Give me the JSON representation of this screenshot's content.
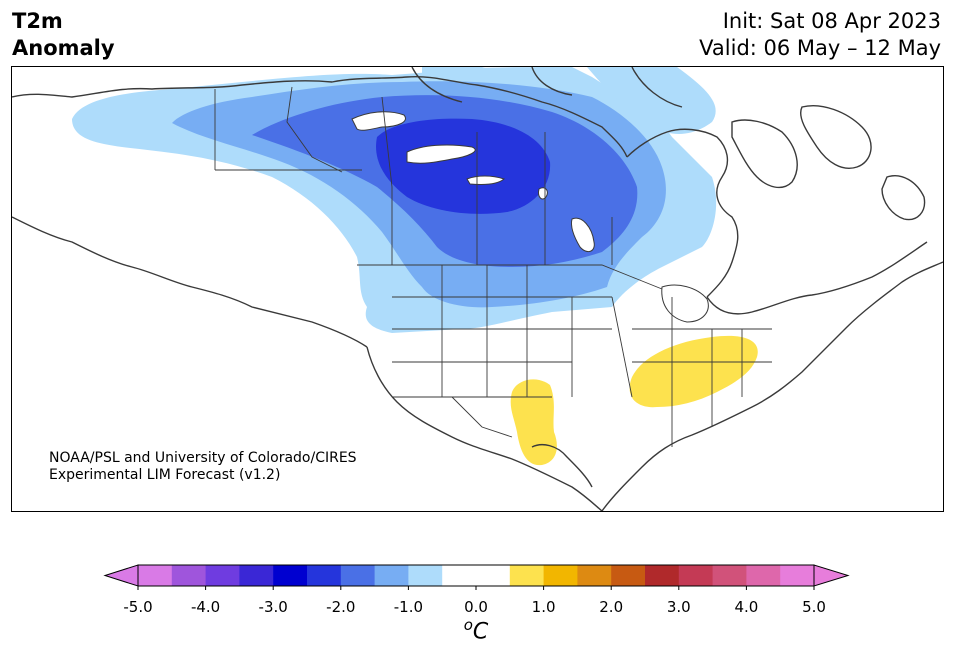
{
  "title": {
    "left_line1": "T2m",
    "left_line2": "Anomaly",
    "right_line1": "Init: Sat 08 Apr 2023",
    "right_line2": "Valid: 06 May – 12 May"
  },
  "credit": {
    "line1": "NOAA/PSL and University of Colorado/CIRES",
    "line2": "Experimental LIM Forecast (v1.2)"
  },
  "map": {
    "region": "North America",
    "variable": "2m temperature anomaly",
    "features": [
      {
        "name": "cold-anomaly",
        "level": -2.5,
        "area": "central Canada / Hudson Bay interior"
      },
      {
        "name": "warm-anomaly",
        "level": 0.5,
        "area": "Tennessee / Kentucky / Virginia"
      },
      {
        "name": "warm-anomaly",
        "level": 0.5,
        "area": "New Mexico / west Texas"
      }
    ]
  },
  "colorbar": {
    "unit_base": "C",
    "unit_sup": "o",
    "ticks": [
      "-5.0",
      "-4.0",
      "-3.0",
      "-2.0",
      "-1.0",
      "0.0",
      "1.0",
      "2.0",
      "3.0",
      "4.0",
      "5.0"
    ],
    "colors": [
      "#d97ae6",
      "#9f55dc",
      "#6f3ce0",
      "#3a27d6",
      "#0000d0",
      "#2535dc",
      "#4a70e6",
      "#77adf3",
      "#aedcfb",
      "#ffffff",
      "#ffffff",
      "#fde24e",
      "#f2b600",
      "#dd8a12",
      "#c75a12",
      "#b0292b",
      "#c43a55",
      "#d1527a",
      "#de67ab",
      "#e77ddb"
    ],
    "extend_low": "#d97ae6",
    "extend_high": "#e77ddb"
  }
}
